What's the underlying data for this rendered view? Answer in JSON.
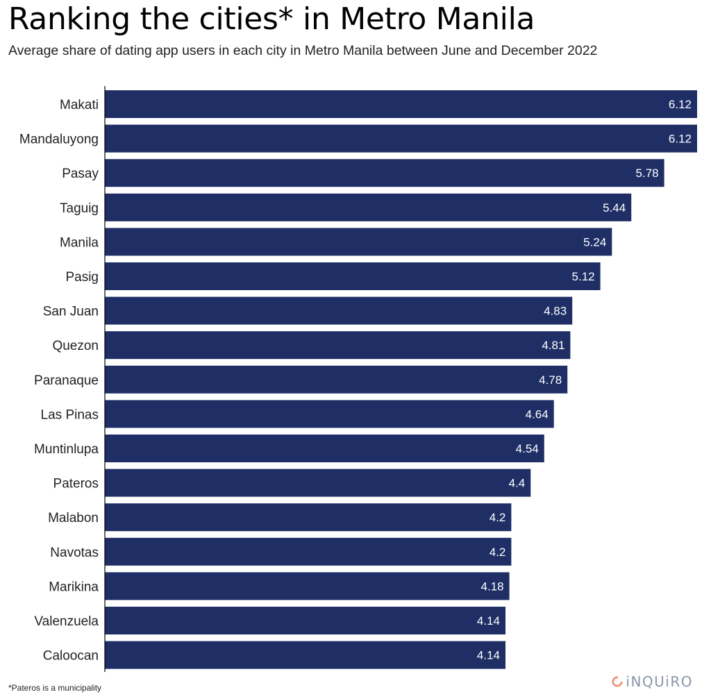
{
  "header": {
    "title": "Ranking the cities* in Metro Manila",
    "subtitle": "Average share of dating app users in each city in Metro Manila between June and December 2022"
  },
  "footnote": "*Pateros is a municipality",
  "brand": {
    "name": "iNQUiRO",
    "icon": "inquiro-logo-icon",
    "text_color": "#8a96a8",
    "icon_color": "#f08c6c"
  },
  "colors": {
    "bar": "#1f2f66",
    "axis": "#000000"
  },
  "chart_data": {
    "type": "bar",
    "orientation": "horizontal",
    "title": "Ranking the cities* in Metro Manila",
    "subtitle": "Average share of dating app users in each city in Metro Manila between June and December 2022",
    "xlabel": "",
    "ylabel": "",
    "xlim": [
      0,
      6.12
    ],
    "grid": false,
    "categories": [
      "Makati",
      "Mandaluyong",
      "Pasay",
      "Taguig",
      "Manila",
      "Pasig",
      "San Juan",
      "Quezon",
      "Paranaque",
      "Las Pinas",
      "Muntinlupa",
      "Pateros",
      "Malabon",
      "Navotas",
      "Marikina",
      "Valenzuela",
      "Caloocan"
    ],
    "values": [
      6.12,
      6.12,
      5.78,
      5.44,
      5.24,
      5.12,
      4.83,
      4.81,
      4.78,
      4.64,
      4.54,
      4.4,
      4.2,
      4.2,
      4.18,
      4.14,
      4.14
    ],
    "value_labels": [
      "6.12",
      "6.12",
      "5.78",
      "5.44",
      "5.24",
      "5.12",
      "4.83",
      "4.81",
      "4.78",
      "4.64",
      "4.54",
      "4.4",
      "4.2",
      "4.2",
      "4.18",
      "4.14",
      "4.14"
    ]
  }
}
